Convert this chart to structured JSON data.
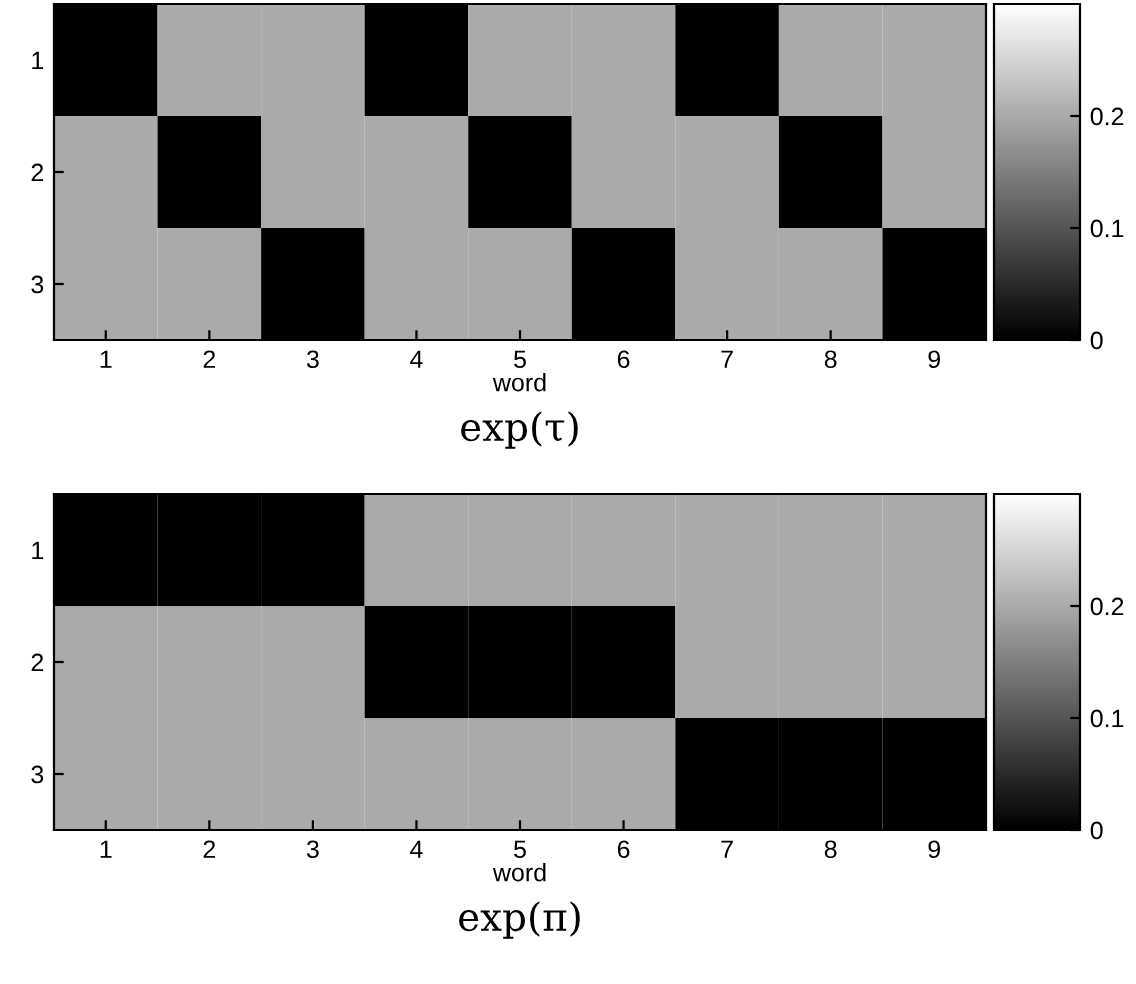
{
  "chart_data": [
    {
      "type": "heatmap",
      "title": "exp(τ)",
      "xlabel": "word",
      "categories": [
        "1",
        "2",
        "3",
        "4",
        "5",
        "6",
        "7",
        "8",
        "9"
      ],
      "y_categories": [
        "1",
        "2",
        "3"
      ],
      "cells": [
        [
          0,
          0.2,
          0.2,
          0,
          0.2,
          0.2,
          0,
          0.2,
          0.2
        ],
        [
          0.2,
          0,
          0.2,
          0.2,
          0,
          0.2,
          0.2,
          0,
          0.2
        ],
        [
          0.2,
          0.2,
          0,
          0.2,
          0.2,
          0,
          0.2,
          0.2,
          0
        ]
      ],
      "clim": [
        0,
        0.3
      ],
      "cticks": [
        0,
        0.1,
        0.2
      ]
    },
    {
      "type": "heatmap",
      "title": "exp(π)",
      "xlabel": "word",
      "categories": [
        "1",
        "2",
        "3",
        "4",
        "5",
        "6",
        "7",
        "8",
        "9"
      ],
      "y_categories": [
        "1",
        "2",
        "3"
      ],
      "cells": [
        [
          0,
          0,
          0,
          0.2,
          0.2,
          0.2,
          0.2,
          0.2,
          0.2
        ],
        [
          0.2,
          0.2,
          0.2,
          0,
          0,
          0,
          0.2,
          0.2,
          0.2
        ],
        [
          0.2,
          0.2,
          0.2,
          0.2,
          0.2,
          0.2,
          0,
          0,
          0
        ]
      ],
      "clim": [
        0,
        0.3
      ],
      "cticks": [
        0,
        0.1,
        0.2
      ]
    }
  ]
}
